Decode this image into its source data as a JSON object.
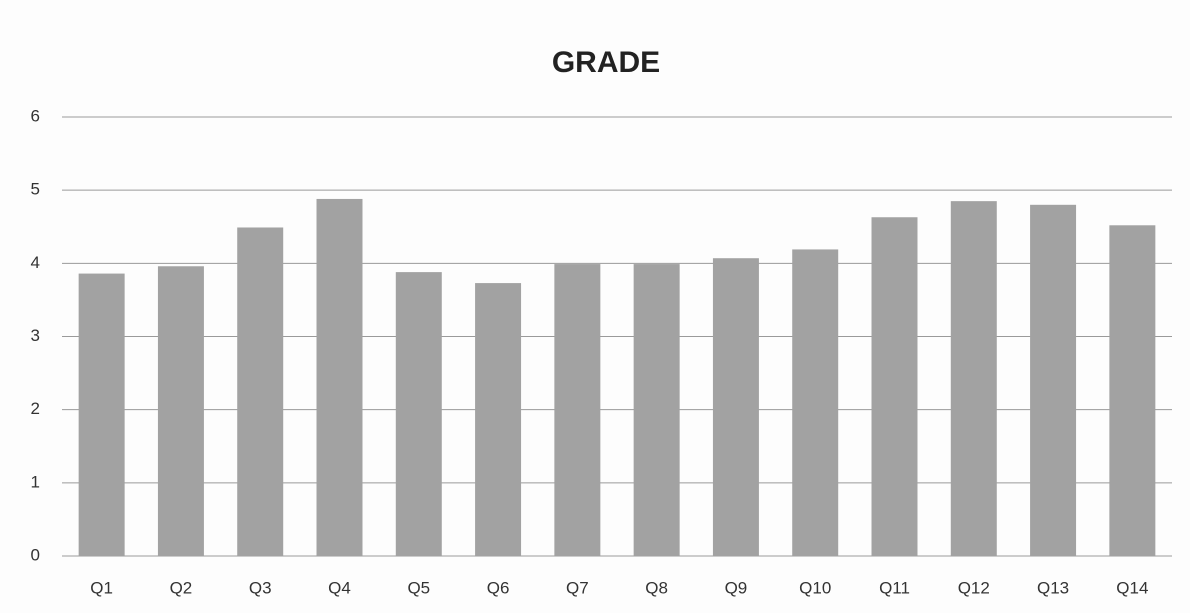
{
  "chart_data": {
    "type": "bar",
    "title": "GRADE",
    "categories": [
      "Q1",
      "Q2",
      "Q3",
      "Q4",
      "Q5",
      "Q6",
      "Q7",
      "Q8",
      "Q9",
      "Q10",
      "Q11",
      "Q12",
      "Q13",
      "Q14"
    ],
    "values": [
      3.86,
      3.96,
      4.49,
      4.88,
      3.88,
      3.73,
      3.99,
      3.99,
      4.07,
      4.19,
      4.63,
      4.85,
      4.8,
      4.52
    ],
    "color": "#a2a2a2",
    "ylim": [
      0,
      6
    ],
    "yticks": [
      0,
      1,
      2,
      3,
      4,
      5,
      6
    ],
    "grid": true
  }
}
